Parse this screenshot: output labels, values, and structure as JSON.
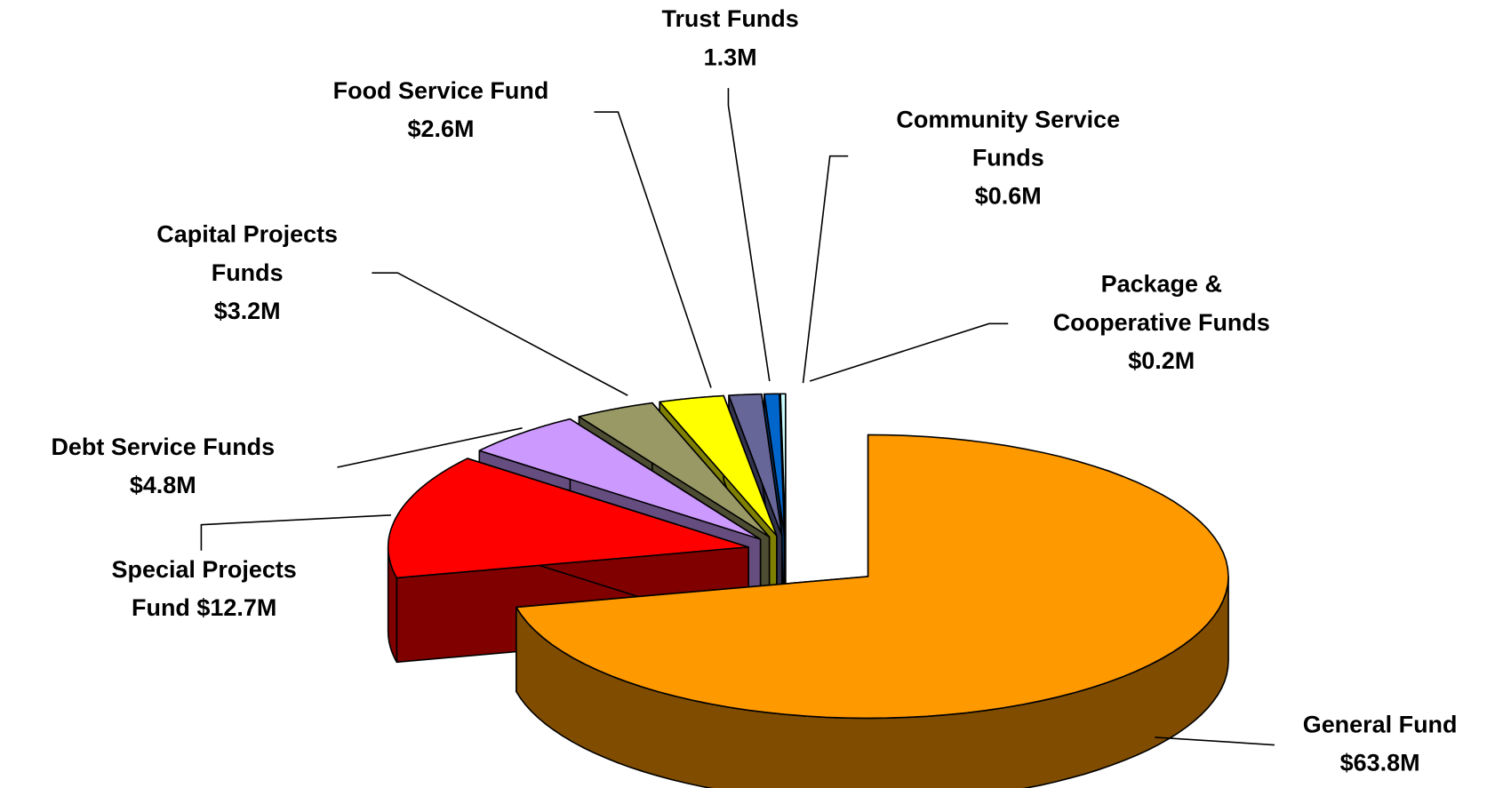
{
  "chart_data": {
    "type": "pie",
    "categories": [
      "General Fund",
      "Special Projects Fund",
      "Debt Service Funds",
      "Capital Projects Funds",
      "Food Service Fund",
      "Trust Funds",
      "Community Service Funds",
      "Package & Cooperative Funds"
    ],
    "values": [
      63.8,
      12.7,
      4.8,
      3.2,
      2.6,
      1.3,
      0.6,
      0.2
    ],
    "value_labels": [
      "$63.8M",
      "$12.7M",
      "$4.8M",
      "$3.2M",
      "$2.6M",
      "1.3M",
      "$0.6M",
      "$0.2M"
    ],
    "colors": [
      "#ff9900",
      "#ff0000",
      "#cc99ff",
      "#999966",
      "#ffff00",
      "#666699",
      "#0066cc",
      "#ccffff"
    ]
  }
}
